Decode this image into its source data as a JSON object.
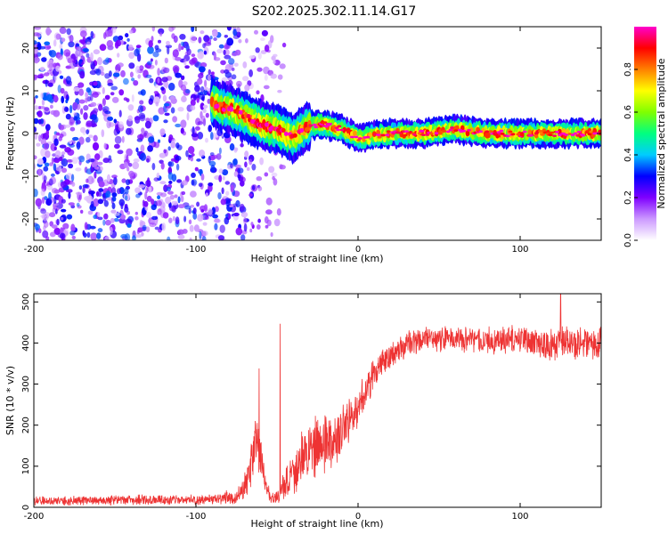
{
  "figure_title": "S202.2025.302.11.14.G17",
  "chart_data": [
    {
      "type": "heatmap",
      "title": "S202.2025.302.11.14.G17",
      "xlabel": "Height of straight line (km)",
      "ylabel": "Frequency (Hz)",
      "xlim": [
        -200,
        150
      ],
      "ylim": [
        -25,
        25
      ],
      "xticks": [
        -200,
        -100,
        0,
        100
      ],
      "yticks": [
        -20,
        -10,
        0,
        10,
        20
      ],
      "tick_labels_x": [
        "-200",
        "-100",
        "0",
        "100"
      ],
      "tick_labels_y": [
        "-20",
        "-10",
        "0",
        "10",
        "20"
      ],
      "colorbar": {
        "label": "Normalized spectral amplitude",
        "range": [
          0,
          1
        ],
        "ticks": [
          0.0,
          0.2,
          0.4,
          0.6,
          0.8
        ],
        "tick_labels": [
          "0.0",
          "0.2",
          "0.4",
          "0.6",
          "0.8"
        ],
        "colormap": [
          "#ffffff",
          "#cc99ff",
          "#7f00ff",
          "#0000ff",
          "#00ccff",
          "#00ff80",
          "#80ff00",
          "#ffff00",
          "#ff8000",
          "#ff0000",
          "#ff00cc"
        ]
      },
      "ridge": {
        "description": "dominant frequency track",
        "x": [
          -90,
          -75,
          -60,
          -50,
          -40,
          -30,
          -20,
          -10,
          0,
          20,
          40,
          60,
          80,
          100,
          120,
          150
        ],
        "y": [
          7,
          5,
          2,
          1,
          -1,
          2,
          2,
          1,
          -1,
          0,
          0,
          1,
          0,
          0,
          0,
          0
        ],
        "peak_amplitude": 0.95
      },
      "noise_region": {
        "x": [
          -200,
          -70
        ],
        "y": [
          -25,
          25
        ],
        "amplitude_range": [
          0.05,
          0.35
        ]
      }
    },
    {
      "type": "line",
      "xlabel": "Height of straight line (km)",
      "ylabel": "SNR (10 * v/v)",
      "xlim": [
        -200,
        150
      ],
      "ylim": [
        0,
        520
      ],
      "xticks": [
        -200,
        -100,
        0,
        100
      ],
      "yticks": [
        0,
        100,
        200,
        300,
        400,
        500
      ],
      "tick_labels_x": [
        "-200",
        "-100",
        "0",
        "100"
      ],
      "tick_labels_y": [
        "0",
        "100",
        "200",
        "300",
        "400",
        "500"
      ],
      "series": [
        {
          "name": "SNR",
          "color": "#ee3333",
          "envelope": {
            "x": [
              -200,
              -150,
              -100,
              -75,
              -68,
              -63,
              -60,
              -56,
              -52,
              -48,
              -45,
              -42,
              -38,
              -34,
              -30,
              -25,
              -20,
              -15,
              -10,
              -5,
              0,
              5,
              10,
              15,
              20,
              25,
              30,
              40,
              50,
              60,
              70,
              80,
              90,
              100,
              110,
              120,
              130,
              140,
              150
            ],
            "center": [
              15,
              18,
              18,
              25,
              60,
              170,
              120,
              40,
              20,
              30,
              60,
              80,
              100,
              120,
              140,
              150,
              160,
              170,
              190,
              210,
              240,
              290,
              320,
              350,
              370,
              380,
              400,
              410,
              410,
              410,
              410,
              405,
              405,
              410,
              400,
              395,
              400,
              400,
              400
            ],
            "spread": [
              12,
              14,
              14,
              20,
              50,
              80,
              60,
              25,
              15,
              25,
              50,
              60,
              70,
              80,
              80,
              85,
              80,
              75,
              70,
              60,
              55,
              50,
              45,
              40,
              40,
              38,
              38,
              36,
              36,
              35,
              36,
              38,
              40,
              45,
              45,
              46,
              46,
              45,
              45
            ]
          },
          "spikes": [
            {
              "x": -61,
              "y": 338
            },
            {
              "x": -48,
              "y": 447
            },
            {
              "x": 125,
              "y": 520
            }
          ]
        }
      ]
    }
  ]
}
